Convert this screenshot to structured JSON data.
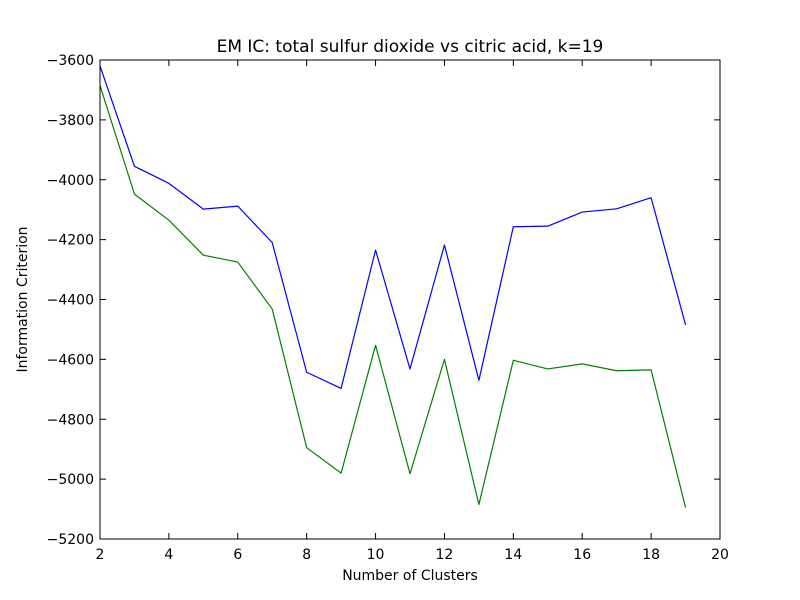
{
  "chart_data": {
    "type": "line",
    "title": "EM IC: total sulfur dioxide vs citric acid, k=19",
    "xlabel": "Number of Clusters",
    "ylabel": "Information Criterion",
    "xlim": [
      2,
      20
    ],
    "ylim": [
      -5200,
      -3600
    ],
    "xticks": [
      2,
      4,
      6,
      8,
      10,
      12,
      14,
      16,
      18,
      20
    ],
    "yticks": [
      -3600,
      -3800,
      -4000,
      -4200,
      -4400,
      -4600,
      -4800,
      -5000,
      -5200
    ],
    "xtick_labels": [
      "2",
      "4",
      "6",
      "8",
      "10",
      "12",
      "14",
      "16",
      "18",
      "20"
    ],
    "ytick_labels": [
      "−3600",
      "−3800",
      "−4000",
      "−4200",
      "−4400",
      "−4600",
      "−4800",
      "−5000",
      "−5200"
    ],
    "grid": false,
    "x": [
      2,
      3,
      4,
      5,
      6,
      7,
      8,
      9,
      10,
      11,
      12,
      13,
      14,
      15,
      16,
      17,
      18,
      19
    ],
    "series": [
      {
        "color": "#0000ff",
        "values": [
          -3620,
          -3955,
          -4012,
          -4098,
          -4088,
          -4210,
          -4643,
          -4697,
          -4235,
          -4632,
          -4218,
          -4670,
          -4157,
          -4155,
          -4108,
          -4097,
          -4060,
          -4485
        ]
      },
      {
        "color": "#008000",
        "values": [
          -3685,
          -4048,
          -4135,
          -4252,
          -4275,
          -4432,
          -4895,
          -4980,
          -4553,
          -4982,
          -4600,
          -5085,
          -4603,
          -4632,
          -4615,
          -4638,
          -4635,
          -5095
        ]
      }
    ]
  }
}
